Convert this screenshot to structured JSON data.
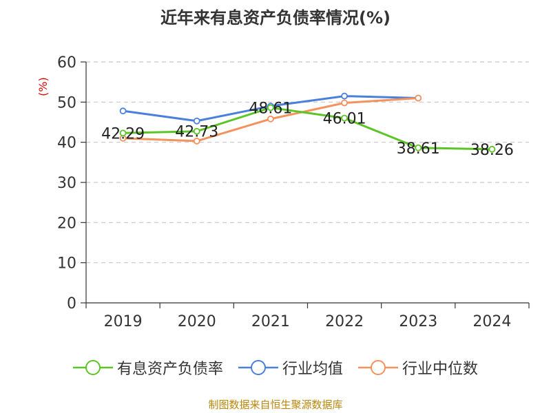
{
  "chart_data": {
    "type": "line",
    "title": "近年来有息资产负债率情况(%)",
    "ylabel": "(%)",
    "categories": [
      "2019",
      "2020",
      "2021",
      "2022",
      "2023",
      "2024"
    ],
    "ylim": [
      0,
      60
    ],
    "yticks": [
      0,
      10,
      20,
      30,
      40,
      50,
      60
    ],
    "grid": true,
    "legend_position": "bottom",
    "series": [
      {
        "name": "有息资产负债率",
        "values": [
          42.29,
          42.73,
          48.61,
          46.01,
          38.61,
          38.26
        ],
        "labels": [
          "42.29",
          "42.73",
          "48.61",
          "46.01",
          "38.61",
          "38.26"
        ],
        "color": "#5cc427"
      },
      {
        "name": "行业均值",
        "values": [
          47.8,
          45.3,
          49.0,
          51.5,
          51.0,
          null
        ],
        "color": "#4a7fdc"
      },
      {
        "name": "行业中位数",
        "values": [
          41.0,
          40.3,
          45.8,
          49.8,
          51.0,
          null
        ],
        "color": "#f5915c"
      }
    ]
  },
  "source": "制图数据来自恒生聚源数据库"
}
